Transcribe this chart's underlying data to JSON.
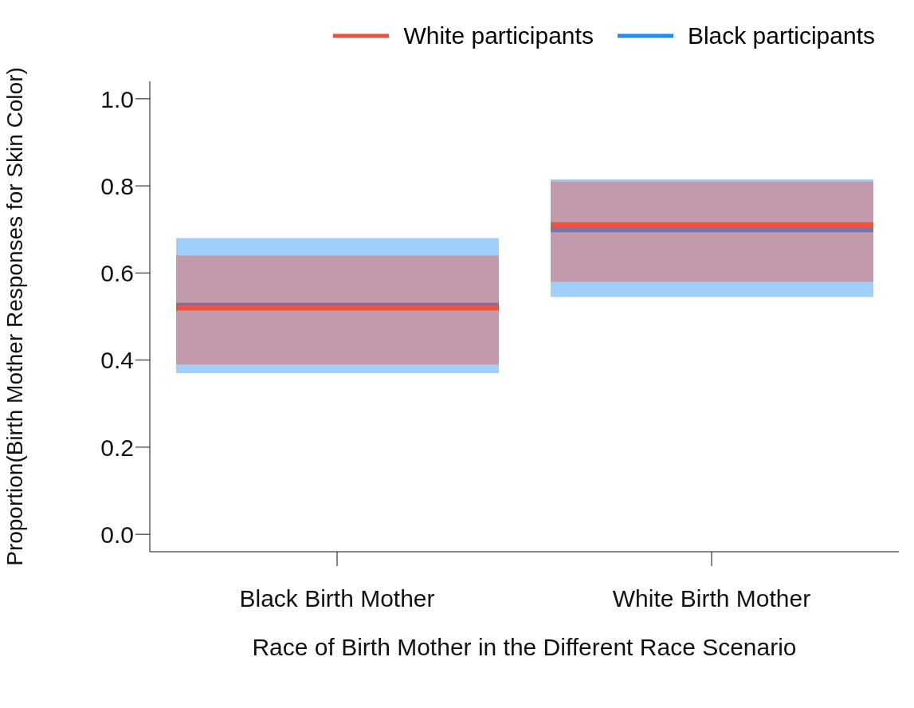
{
  "chart_data": {
    "type": "box",
    "xlabel": "Race of Birth Mother in the Different Race Scenario",
    "ylabel": "Proportion(Birth Mother Responses for Skin Color)",
    "categories": [
      "Black Birth Mother",
      "White Birth Mother"
    ],
    "series": [
      {
        "name": "White participants",
        "color": "#f0503c",
        "boxes": [
          {
            "low": 0.39,
            "q1": 0.39,
            "median": 0.52,
            "q3": 0.64,
            "high": 0.64
          },
          {
            "low": 0.58,
            "q1": 0.58,
            "median": 0.71,
            "q3": 0.81,
            "high": 0.81
          }
        ]
      },
      {
        "name": "Black participants",
        "color": "#1e8cf8",
        "boxes": [
          {
            "low": 0.37,
            "q1": 0.37,
            "median": 0.525,
            "q3": 0.68,
            "high": 0.68
          },
          {
            "low": 0.545,
            "q1": 0.545,
            "median": 0.7,
            "q3": 0.815,
            "high": 0.815
          }
        ]
      }
    ],
    "ylim": [
      -0.04,
      1.04
    ],
    "yticks": [
      {
        "value": 0,
        "label": "0.0"
      },
      {
        "value": 0.2,
        "label": "0.2"
      },
      {
        "value": 0.4,
        "label": "0.4"
      },
      {
        "value": 0.6,
        "label": "0.6"
      },
      {
        "value": 0.8,
        "label": "0.8"
      },
      {
        "value": 1,
        "label": "1.0"
      }
    ],
    "legend": "top",
    "grid": false,
    "line_style": "solid"
  }
}
